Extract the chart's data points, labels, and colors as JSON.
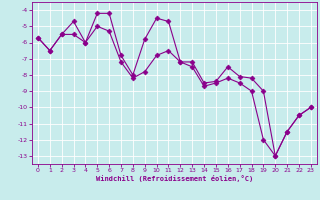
{
  "xlabel": "Windchill (Refroidissement éolien,°C)",
  "bg_color": "#c8ecec",
  "line_color": "#8b008b",
  "grid_color": "#ffffff",
  "line1_x": [
    0,
    1,
    2,
    3,
    4,
    5,
    6,
    7,
    8,
    9,
    10,
    11,
    12,
    13,
    14,
    15,
    16,
    17,
    18,
    19,
    20,
    21,
    22,
    23
  ],
  "line1_y": [
    -5.7,
    -6.5,
    -5.5,
    -4.7,
    -6.0,
    -4.2,
    -4.2,
    -6.8,
    -8.0,
    -5.8,
    -4.5,
    -4.7,
    -7.2,
    -7.2,
    -8.5,
    -8.4,
    -7.5,
    -8.1,
    -8.2,
    -9.0,
    -13.0,
    -11.5,
    -10.5,
    -10.0
  ],
  "line2_x": [
    0,
    1,
    2,
    3,
    4,
    5,
    6,
    7,
    8,
    9,
    10,
    11,
    12,
    13,
    14,
    15,
    16,
    17,
    18,
    19,
    20,
    21,
    22,
    23
  ],
  "line2_y": [
    -5.7,
    -6.5,
    -5.5,
    -5.5,
    -6.0,
    -5.0,
    -5.3,
    -7.2,
    -8.2,
    -7.8,
    -6.8,
    -6.5,
    -7.2,
    -7.5,
    -8.7,
    -8.5,
    -8.2,
    -8.5,
    -9.0,
    -12.0,
    -13.0,
    -11.5,
    -10.5,
    -10.0
  ],
  "xlim": [
    -0.5,
    23.5
  ],
  "ylim": [
    -13.5,
    -3.5
  ],
  "yticks": [
    -4,
    -5,
    -6,
    -7,
    -8,
    -9,
    -10,
    -11,
    -12,
    -13
  ],
  "xticks": [
    0,
    1,
    2,
    3,
    4,
    5,
    6,
    7,
    8,
    9,
    10,
    11,
    12,
    13,
    14,
    15,
    16,
    17,
    18,
    19,
    20,
    21,
    22,
    23
  ],
  "marker": "D",
  "markersize": 2.5,
  "linewidth": 0.8
}
